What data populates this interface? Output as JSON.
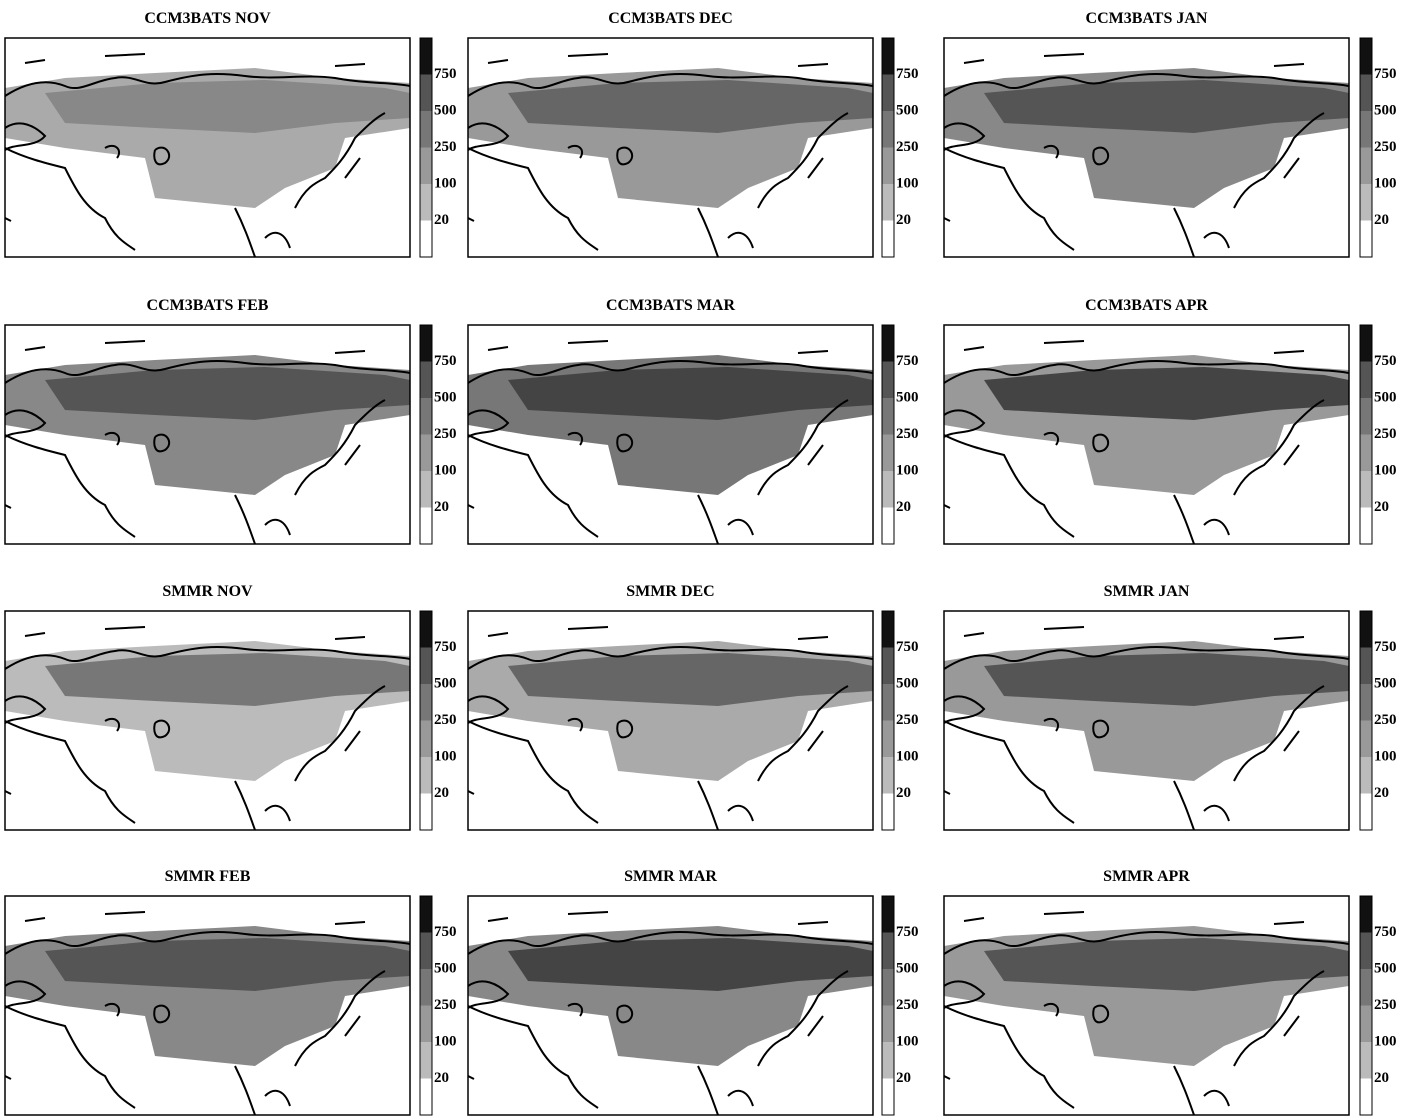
{
  "panels": [
    {
      "title": "CCM3BATS NOV"
    },
    {
      "title": "CCM3BATS DEC"
    },
    {
      "title": "CCM3BATS JAN"
    },
    {
      "title": "CCM3BATS FEB"
    },
    {
      "title": "CCM3BATS MAR"
    },
    {
      "title": "CCM3BATS APR"
    },
    {
      "title": "SMMR NOV"
    },
    {
      "title": "SMMR DEC"
    },
    {
      "title": "SMMR JAN"
    },
    {
      "title": "SMMR FEB"
    },
    {
      "title": "SMMR MAR"
    },
    {
      "title": "SMMR APR"
    }
  ],
  "colorbar": {
    "ticks": [
      750,
      500,
      250,
      100,
      20
    ]
  }
}
